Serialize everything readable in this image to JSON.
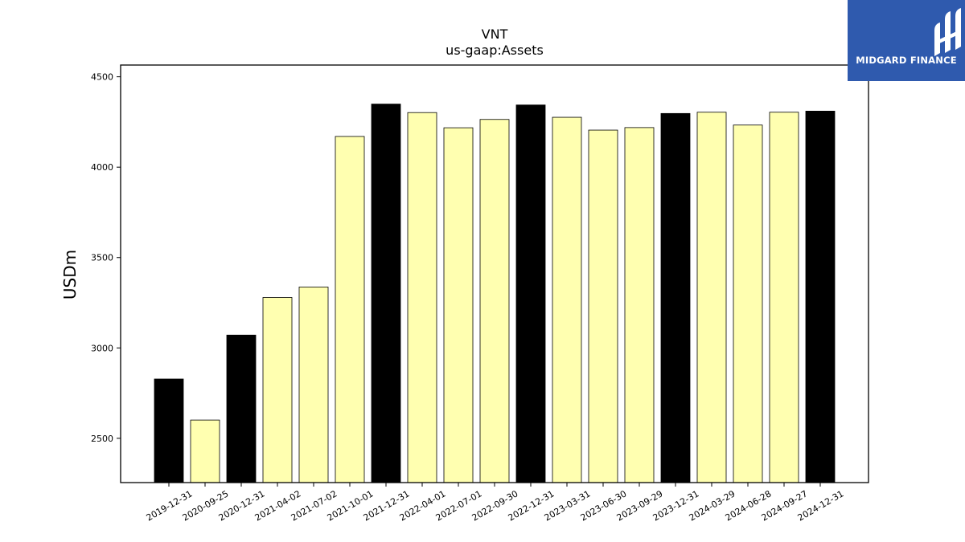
{
  "brand": {
    "logo_text": "MIDGARD FINANCE",
    "background_color": "#2f5aae",
    "icon": "midgard-logo-icon"
  },
  "chart_data": {
    "type": "bar",
    "title": "VNT",
    "subtitle": "us-gaap:Assets",
    "xlabel": "",
    "ylabel": "USDm",
    "ylim": [
      2255,
      4565
    ],
    "yticks": [
      2500,
      3000,
      3500,
      4000,
      4500
    ],
    "grid": false,
    "categories": [
      "2019-12-31",
      "2020-09-25",
      "2020-12-31",
      "2021-04-02",
      "2021-07-02",
      "2021-10-01",
      "2021-12-31",
      "2022-04-01",
      "2022-07-01",
      "2022-09-30",
      "2022-12-31",
      "2023-03-31",
      "2023-06-30",
      "2023-09-29",
      "2023-12-31",
      "2024-03-29",
      "2024-06-28",
      "2024-09-27",
      "2024-12-31"
    ],
    "values": [
      2828,
      2601,
      3071,
      3279,
      3337,
      4170,
      4349,
      4302,
      4218,
      4264,
      4344,
      4276,
      4205,
      4219,
      4297,
      4304,
      4233,
      4304,
      4310
    ],
    "bar_colors": [
      "#000000",
      "#ffffb0",
      "#000000",
      "#ffffb0",
      "#ffffb0",
      "#ffffb0",
      "#000000",
      "#ffffb0",
      "#ffffb0",
      "#ffffb0",
      "#000000",
      "#ffffb0",
      "#ffffb0",
      "#ffffb0",
      "#000000",
      "#ffffb0",
      "#ffffb0",
      "#ffffb0",
      "#000000"
    ]
  }
}
